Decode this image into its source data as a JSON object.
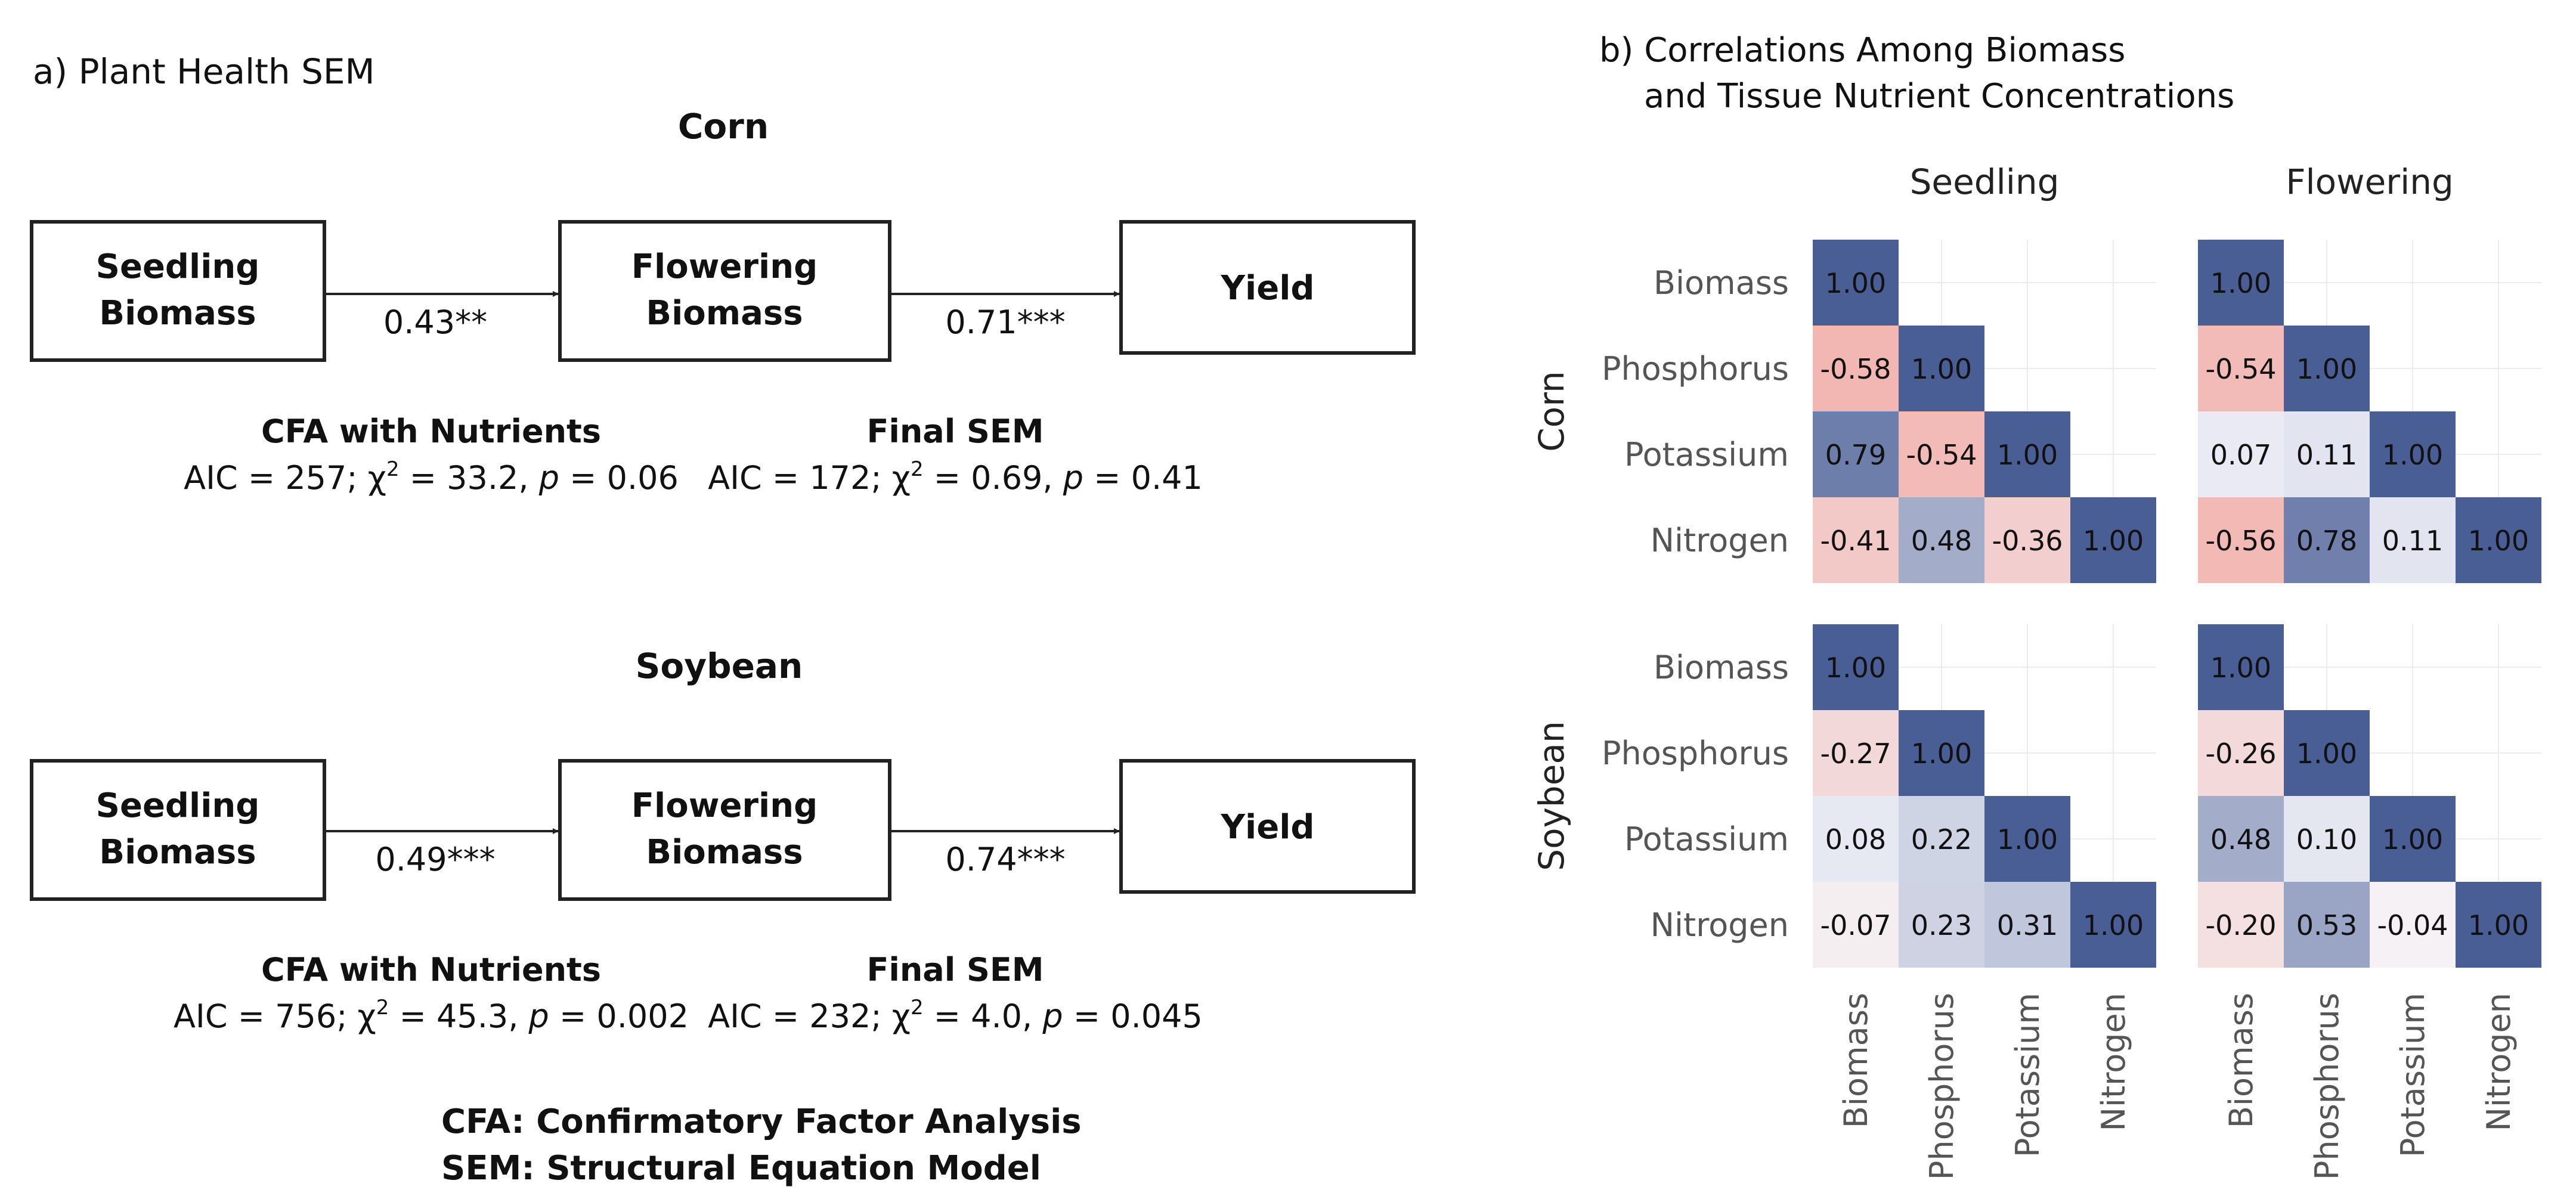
{
  "panel_a": {
    "title": "a) Plant Health SEM",
    "models": [
      {
        "crop": "Corn",
        "boxes": [
          {
            "line1": "Seedling",
            "line2": "Biomass"
          },
          {
            "line1": "Flowering",
            "line2": "Biomass"
          },
          {
            "line1": "Yield",
            "line2": ""
          }
        ],
        "paths": [
          "0.43**",
          "0.71***"
        ],
        "fit": [
          {
            "title": "CFA with Nutrients",
            "aic": "AIC = 257; χ",
            "chi": " = 33.2, ",
            "p": "p",
            "pval": " = 0.06"
          },
          {
            "title": "Final SEM",
            "aic": "AIC = 172; χ",
            "chi": " = 0.69, ",
            "p": "p",
            "pval": " = 0.41"
          }
        ]
      },
      {
        "crop": "Soybean",
        "boxes": [
          {
            "line1": "Seedling",
            "line2": "Biomass"
          },
          {
            "line1": "Flowering",
            "line2": "Biomass"
          },
          {
            "line1": "Yield",
            "line2": ""
          }
        ],
        "paths": [
          "0.49***",
          "0.74***"
        ],
        "fit": [
          {
            "title": "CFA with Nutrients",
            "aic": "AIC = 756; χ",
            "chi": " = 45.3, ",
            "p": "p",
            "pval": " = 0.002"
          },
          {
            "title": "Final SEM",
            "aic": "AIC = 232; χ",
            "chi": " = 4.0, ",
            "p": "p",
            "pval": " = 0.045"
          }
        ]
      }
    ],
    "superscript": "2",
    "footnotes": [
      "CFA: Confirmatory Factor Analysis",
      "SEM: Structural Equation Model"
    ]
  },
  "panel_b": {
    "title_line1": "b) Correlations Among Biomass",
    "title_line2": "and Tissue Nutrient Concentrations",
    "columns": [
      "Seedling",
      "Flowering"
    ],
    "rows": [
      "Corn",
      "Soybean"
    ],
    "variables": [
      "Biomass",
      "Phosphorus",
      "Potassium",
      "Nitrogen"
    ],
    "colors": {
      "positive": "#4a5e96",
      "negative": "#ef8a7f",
      "neutral": "#f5f5fa"
    },
    "matrices": {
      "Corn": {
        "Seedling": [
          [
            1.0
          ],
          [
            -0.58,
            1.0
          ],
          [
            0.79,
            -0.54,
            1.0
          ],
          [
            -0.41,
            0.48,
            -0.36,
            1.0
          ]
        ],
        "Flowering": [
          [
            1.0
          ],
          [
            -0.54,
            1.0
          ],
          [
            0.07,
            0.11,
            1.0
          ],
          [
            -0.56,
            0.78,
            0.11,
            1.0
          ]
        ]
      },
      "Soybean": {
        "Seedling": [
          [
            1.0
          ],
          [
            -0.27,
            1.0
          ],
          [
            0.08,
            0.22,
            1.0
          ],
          [
            -0.07,
            0.23,
            0.31,
            1.0
          ]
        ],
        "Flowering": [
          [
            1.0
          ],
          [
            -0.26,
            1.0
          ],
          [
            0.48,
            0.1,
            1.0
          ],
          [
            -0.2,
            0.53,
            -0.04,
            1.0
          ]
        ]
      }
    }
  }
}
